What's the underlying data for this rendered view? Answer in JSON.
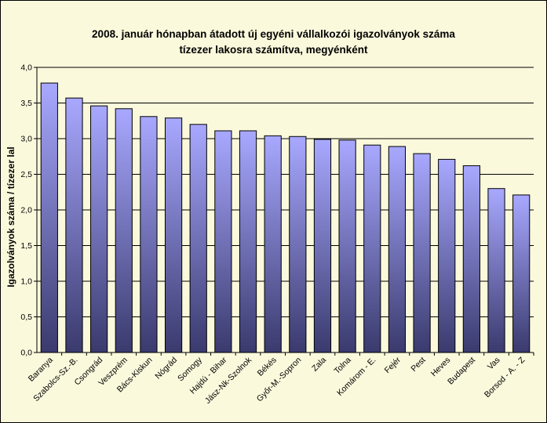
{
  "chart_data": {
    "type": "bar",
    "title_lines": [
      "2008. január hónapban átadott új egyéni vállalkozói  igazolványok száma",
      "tízezer lakosra számítva, megyénként"
    ],
    "xlabel": "",
    "ylabel": "Igazolványok száma / tízezer lal",
    "ylim": [
      0,
      4
    ],
    "yticks": [
      "0,0",
      "0,5",
      "1,0",
      "1,5",
      "2,0",
      "2,5",
      "3,0",
      "3,5",
      "4,0"
    ],
    "grid": true,
    "legend": "none",
    "categories": [
      "Baranya",
      "Szabolcs-Sz.-B.",
      "Csongrád",
      "Veszprém",
      "Bács-Kiskun",
      "Nógrád",
      "Somogy",
      "Hajdú - Bihar",
      "Jász-Nk-Szolnok",
      "Békés",
      "Győr-M.-Sopron",
      "Zala",
      "Tolna",
      "Komárom - E.",
      "Fejér",
      "Pest",
      "Heves",
      "Budapest",
      "Vas",
      "Borsod - A. - Z"
    ],
    "values": [
      3.78,
      3.57,
      3.46,
      3.42,
      3.31,
      3.29,
      3.2,
      3.11,
      3.11,
      3.04,
      3.03,
      2.99,
      2.98,
      2.91,
      2.89,
      2.79,
      2.71,
      2.62,
      2.3,
      2.21
    ]
  },
  "colors": {
    "background": "#fbf9dc",
    "bar_top": "#a8a8ff",
    "bar_bottom": "#3a3a6e",
    "grid": "#000000"
  }
}
